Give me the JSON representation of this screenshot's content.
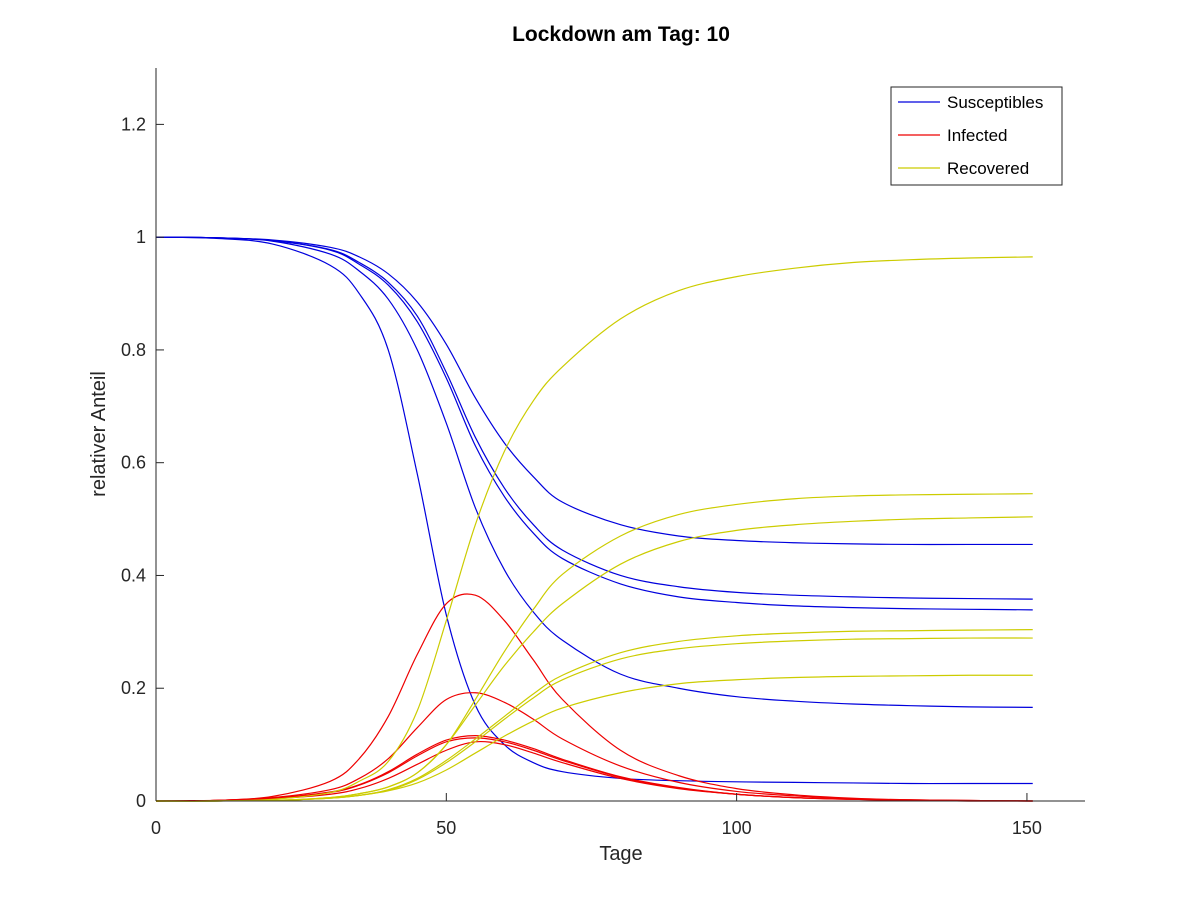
{
  "chart_data": {
    "type": "line",
    "title": "Lockdown am Tag: 10",
    "xlabel": "Tage",
    "ylabel": "relativer Anteil",
    "xlim": [
      0,
      160
    ],
    "ylim": [
      0,
      1.3
    ],
    "xticks": [
      0,
      50,
      100,
      150
    ],
    "yticks": [
      0,
      0.2,
      0.4,
      0.6,
      0.8,
      1,
      1.2
    ],
    "xtick_labels": [
      "0",
      "50",
      "100",
      "150"
    ],
    "ytick_labels": [
      "0",
      "0.2",
      "0.4",
      "0.6",
      "0.8",
      "1",
      "1.2"
    ],
    "grid": false,
    "legend_position": "top-right",
    "legend": [
      {
        "label": "Susceptibles",
        "color": "#0000dd"
      },
      {
        "label": "Infected",
        "color": "#ee0000"
      },
      {
        "label": "Recovered",
        "color": "#cccc00"
      }
    ],
    "x": [
      0,
      10,
      20,
      30,
      35,
      40,
      45,
      50,
      55,
      60,
      65,
      70,
      80,
      90,
      100,
      110,
      120,
      130,
      140,
      151
    ],
    "series": [
      {
        "group": "Susceptibles",
        "color": "#0000dd",
        "values": [
          1.0,
          0.999,
          0.995,
          0.982,
          0.965,
          0.935,
          0.885,
          0.81,
          0.715,
          0.635,
          0.575,
          0.53,
          0.49,
          0.47,
          0.462,
          0.458,
          0.456,
          0.455,
          0.455,
          0.455
        ]
      },
      {
        "group": "Susceptibles",
        "color": "#0000dd",
        "values": [
          1.0,
          0.999,
          0.994,
          0.978,
          0.955,
          0.92,
          0.86,
          0.76,
          0.645,
          0.555,
          0.49,
          0.445,
          0.4,
          0.38,
          0.37,
          0.365,
          0.362,
          0.36,
          0.359,
          0.358
        ]
      },
      {
        "group": "Susceptibles",
        "color": "#0000dd",
        "values": [
          1.0,
          0.999,
          0.994,
          0.977,
          0.952,
          0.915,
          0.85,
          0.75,
          0.63,
          0.54,
          0.475,
          0.43,
          0.385,
          0.362,
          0.352,
          0.346,
          0.343,
          0.341,
          0.34,
          0.339
        ]
      },
      {
        "group": "Susceptibles",
        "color": "#0000dd",
        "values": [
          1.0,
          0.999,
          0.993,
          0.97,
          0.94,
          0.89,
          0.8,
          0.67,
          0.52,
          0.41,
          0.335,
          0.285,
          0.225,
          0.2,
          0.185,
          0.177,
          0.172,
          0.169,
          0.167,
          0.166
        ]
      },
      {
        "group": "Susceptibles",
        "color": "#0000dd",
        "values": [
          1.0,
          0.998,
          0.988,
          0.95,
          0.9,
          0.8,
          0.58,
          0.33,
          0.17,
          0.1,
          0.068,
          0.052,
          0.04,
          0.036,
          0.034,
          0.033,
          0.032,
          0.031,
          0.031,
          0.031
        ]
      },
      {
        "group": "Infected",
        "color": "#ee0000",
        "values": [
          0.0,
          0.001,
          0.004,
          0.012,
          0.022,
          0.04,
          0.065,
          0.09,
          0.105,
          0.1,
          0.085,
          0.068,
          0.04,
          0.022,
          0.012,
          0.006,
          0.003,
          0.002,
          0.001,
          0.0
        ]
      },
      {
        "group": "Infected",
        "color": "#ee0000",
        "values": [
          0.0,
          0.001,
          0.005,
          0.015,
          0.028,
          0.05,
          0.08,
          0.105,
          0.112,
          0.105,
          0.09,
          0.072,
          0.042,
          0.023,
          0.012,
          0.006,
          0.003,
          0.001,
          0.0,
          0.0
        ]
      },
      {
        "group": "Infected",
        "color": "#ee0000",
        "values": [
          0.0,
          0.001,
          0.005,
          0.016,
          0.029,
          0.052,
          0.083,
          0.108,
          0.116,
          0.108,
          0.093,
          0.074,
          0.043,
          0.024,
          0.012,
          0.006,
          0.003,
          0.001,
          0.0,
          0.0
        ]
      },
      {
        "group": "Infected",
        "color": "#ee0000",
        "values": [
          0.0,
          0.001,
          0.006,
          0.02,
          0.04,
          0.075,
          0.13,
          0.18,
          0.192,
          0.175,
          0.145,
          0.11,
          0.062,
          0.033,
          0.017,
          0.009,
          0.004,
          0.002,
          0.001,
          0.0
        ]
      },
      {
        "group": "Infected",
        "color": "#ee0000",
        "values": [
          0.0,
          0.001,
          0.008,
          0.035,
          0.075,
          0.15,
          0.26,
          0.35,
          0.365,
          0.32,
          0.25,
          0.18,
          0.09,
          0.045,
          0.022,
          0.011,
          0.005,
          0.002,
          0.001,
          0.0
        ]
      },
      {
        "group": "Recovered",
        "color": "#cccc00",
        "values": [
          0.0,
          0.0,
          0.001,
          0.006,
          0.013,
          0.025,
          0.05,
          0.1,
          0.18,
          0.265,
          0.34,
          0.402,
          0.47,
          0.508,
          0.526,
          0.536,
          0.541,
          0.543,
          0.544,
          0.545
        ]
      },
      {
        "group": "Recovered",
        "color": "#cccc00",
        "values": [
          0.0,
          0.0,
          0.001,
          0.006,
          0.013,
          0.025,
          0.05,
          0.1,
          0.17,
          0.24,
          0.3,
          0.35,
          0.42,
          0.46,
          0.48,
          0.49,
          0.496,
          0.5,
          0.502,
          0.504
        ]
      },
      {
        "group": "Recovered",
        "color": "#cccc00",
        "values": [
          0.0,
          0.0,
          0.001,
          0.005,
          0.01,
          0.02,
          0.04,
          0.072,
          0.11,
          0.15,
          0.19,
          0.223,
          0.263,
          0.283,
          0.293,
          0.298,
          0.301,
          0.302,
          0.303,
          0.304
        ]
      },
      {
        "group": "Recovered",
        "color": "#cccc00",
        "values": [
          0.0,
          0.0,
          0.001,
          0.005,
          0.01,
          0.019,
          0.038,
          0.068,
          0.105,
          0.145,
          0.183,
          0.215,
          0.252,
          0.27,
          0.279,
          0.284,
          0.287,
          0.288,
          0.289,
          0.289
        ]
      },
      {
        "group": "Recovered",
        "color": "#cccc00",
        "values": [
          0.0,
          0.0,
          0.001,
          0.005,
          0.01,
          0.018,
          0.032,
          0.055,
          0.085,
          0.115,
          0.142,
          0.165,
          0.192,
          0.208,
          0.215,
          0.219,
          0.221,
          0.222,
          0.223,
          0.223
        ]
      },
      {
        "group": "Recovered",
        "color": "#cccc00",
        "values": [
          0.0,
          0.0,
          0.003,
          0.015,
          0.035,
          0.07,
          0.16,
          0.32,
          0.49,
          0.62,
          0.71,
          0.77,
          0.855,
          0.905,
          0.93,
          0.945,
          0.955,
          0.96,
          0.963,
          0.965
        ]
      }
    ]
  }
}
